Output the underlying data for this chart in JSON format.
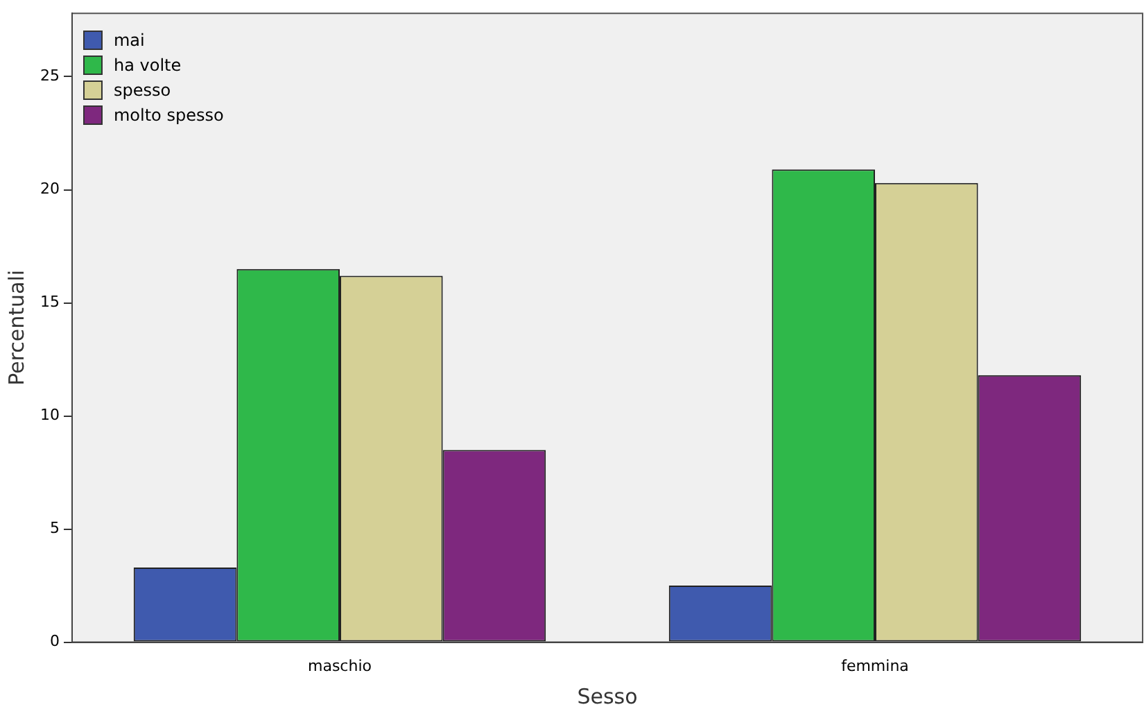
{
  "chart_data": {
    "type": "bar",
    "xlabel": "Sesso",
    "ylabel": "Percentuali",
    "categories": [
      "maschio",
      "femmina"
    ],
    "series": [
      {
        "name": "mai",
        "color": "#3f5aae",
        "values": [
          3.3,
          2.5
        ]
      },
      {
        "name": "ha volte",
        "color": "#2fb84a",
        "values": [
          16.5,
          20.9
        ]
      },
      {
        "name": "spesso",
        "color": "#d5d096",
        "values": [
          16.2,
          20.3
        ]
      },
      {
        "name": "molto spesso",
        "color": "#7e287e",
        "values": [
          8.5,
          11.8
        ]
      }
    ],
    "ylim": [
      0,
      27.8
    ],
    "yticks": [
      0,
      5,
      10,
      15,
      20,
      25
    ],
    "grid": false,
    "legend": "top left"
  }
}
